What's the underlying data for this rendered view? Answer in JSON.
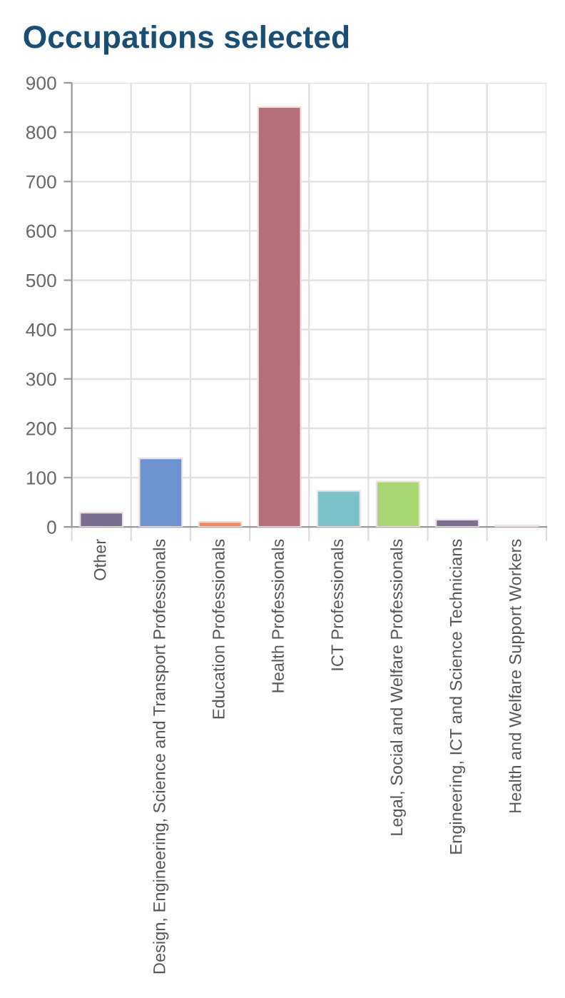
{
  "chart_data": {
    "type": "bar",
    "title": "Occupations selected",
    "categories": [
      "Other",
      "Design, Engineering, Science and Transport Professionals",
      "Education Professionals",
      "Health Professionals",
      "ICT Professionals",
      "Legal, Social and Welfare Professionals",
      "Engineering, ICT and Science Technicians",
      "Health and Welfare Support Workers"
    ],
    "values": [
      29,
      139,
      10,
      851,
      73,
      92,
      15,
      3
    ],
    "colors": [
      "#7a6f91",
      "#6b93cf",
      "#ef8a5a",
      "#b5717a",
      "#79c2c8",
      "#a8d672",
      "#7a6f91",
      "#6b93cf"
    ],
    "ylim": [
      0,
      900
    ],
    "yticks": [
      0,
      100,
      200,
      300,
      400,
      500,
      600,
      700,
      800,
      900
    ],
    "grid": true
  }
}
